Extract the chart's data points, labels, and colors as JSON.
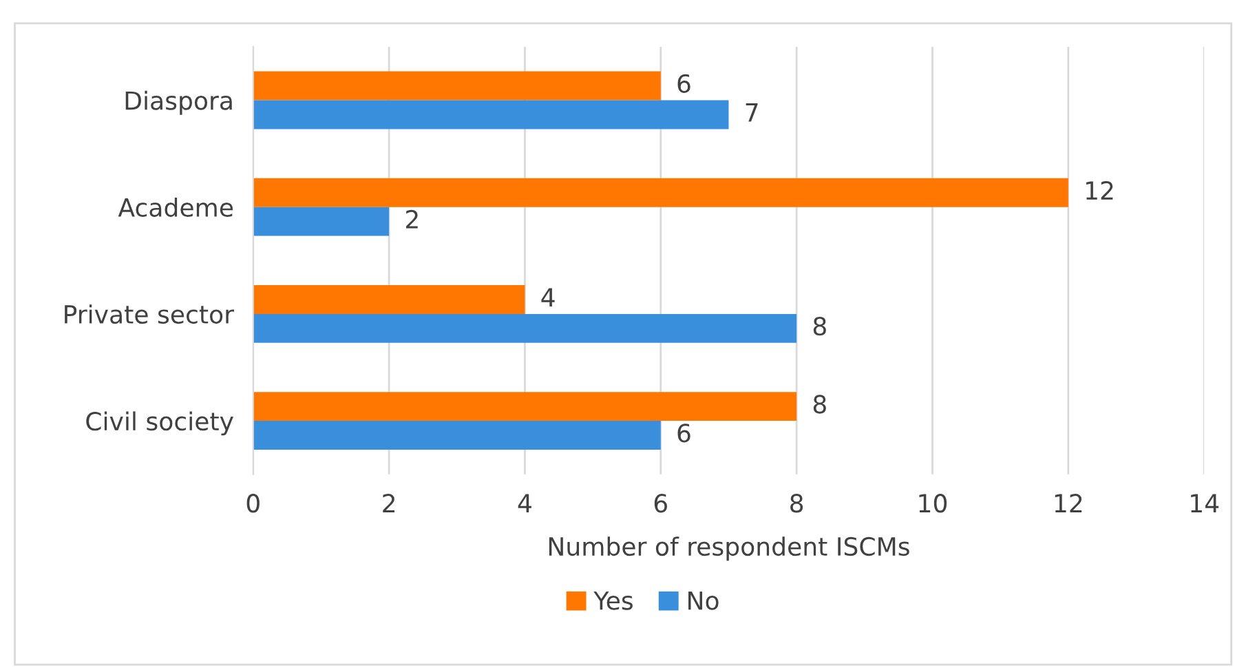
{
  "chart_data": {
    "type": "bar",
    "orientation": "horizontal",
    "xlabel": "Number of respondent ISCMs",
    "categories": [
      "Diaspora",
      "Academe",
      "Private sector",
      "Civil society"
    ],
    "series": [
      {
        "name": "Yes",
        "color": "#ff7600",
        "values": [
          6,
          12,
          4,
          8
        ]
      },
      {
        "name": "No",
        "color": "#3a8fdc",
        "values": [
          7,
          2,
          8,
          6
        ]
      }
    ],
    "xlim": [
      0,
      14
    ],
    "xticks": [
      0,
      2,
      4,
      6,
      8,
      10,
      12,
      14
    ],
    "grid": "x",
    "legend": "bottom",
    "data_labels": true
  }
}
